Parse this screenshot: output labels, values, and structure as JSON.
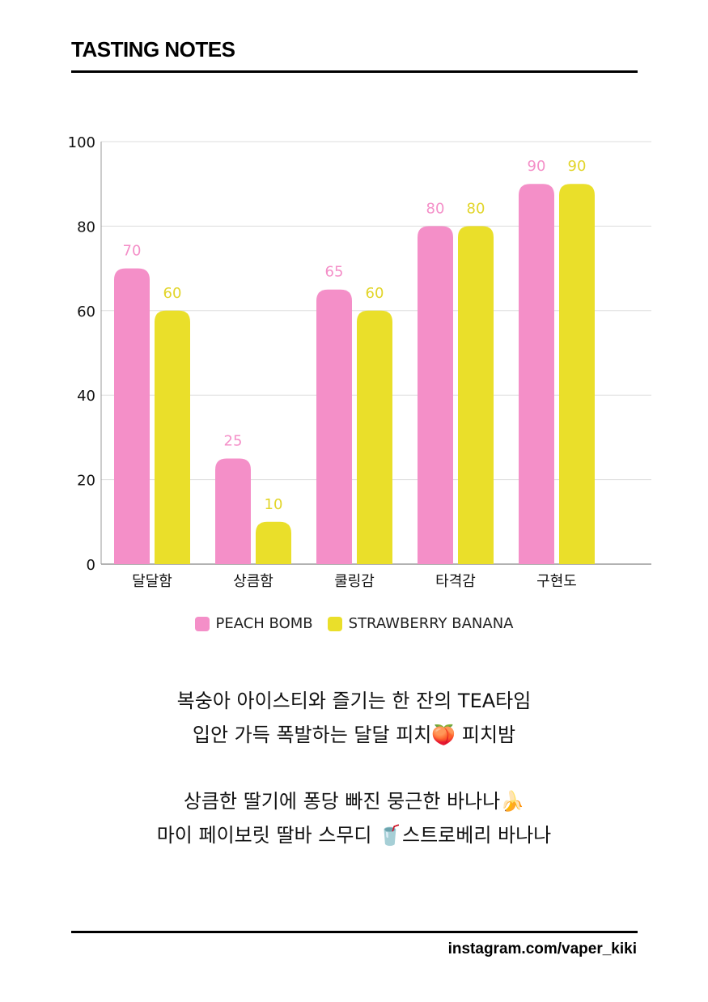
{
  "header": {
    "title": "TASTING NOTES"
  },
  "colors": {
    "peach": "#F48FC8",
    "banana": "#EADF2A",
    "grid": "#DDDDDD",
    "axis": "#999999"
  },
  "chart_data": {
    "type": "bar",
    "categories": [
      "달달함",
      "상큼함",
      "쿨링감",
      "타격감",
      "구현도"
    ],
    "series": [
      {
        "name": "PEACH BOMB",
        "values": [
          70,
          25,
          65,
          80,
          90
        ]
      },
      {
        "name": "STRAWBERRY BANANA",
        "values": [
          60,
          10,
          60,
          80,
          90
        ]
      }
    ],
    "yticks": [
      0,
      20,
      40,
      60,
      80,
      100
    ],
    "ylim": [
      0,
      100
    ],
    "grid": true,
    "legend": "bottom"
  },
  "description": {
    "lines1": [
      "복숭아 아이스티와 즐기는 한 잔의 TEA타임",
      "입안 가득 폭발하는 달달 피치🍑 피치밤"
    ],
    "lines2": [
      "상큼한 딸기에 퐁당 빠진 뭉근한 바나나🍌",
      "마이 페이보릿 딸바 스무디 🥤스트로베리 바나나"
    ]
  },
  "footer": {
    "handle": "instagram.com/vaper_kiki"
  }
}
